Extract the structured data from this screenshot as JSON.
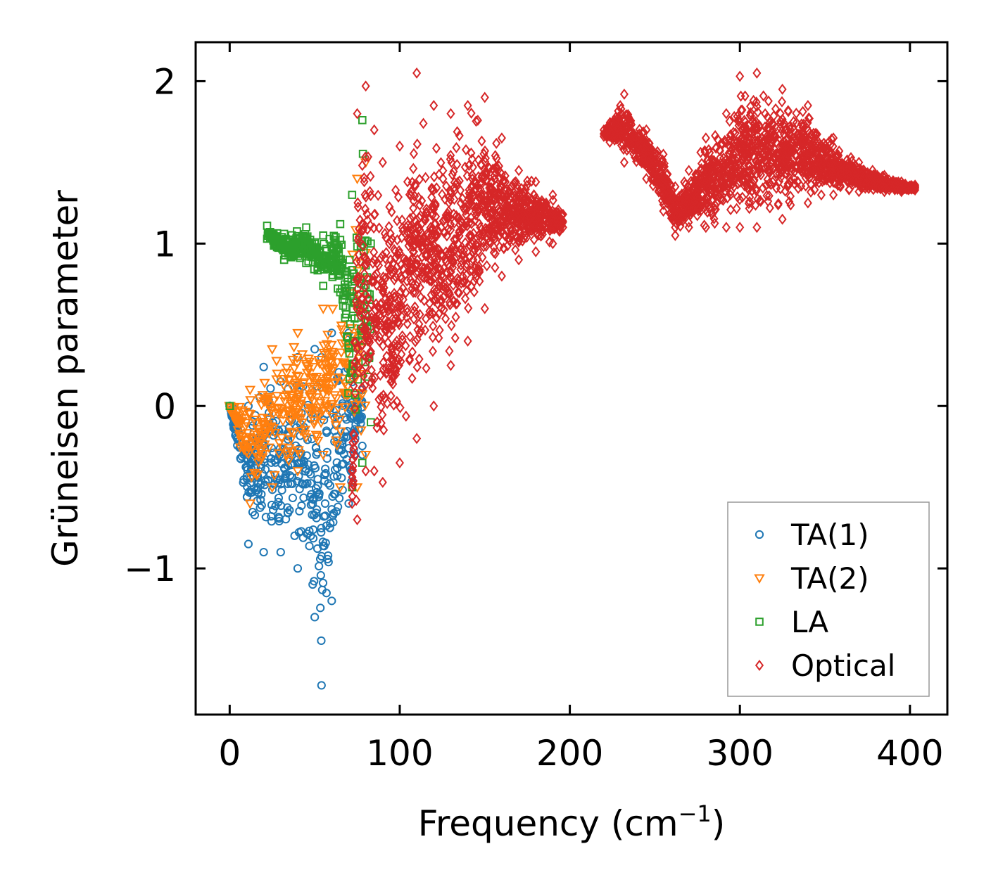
{
  "chart_data": {
    "type": "scatter",
    "title": "",
    "xlabel": "Frequency (cm",
    "xlabel_sup": "−1",
    "xlabel_tail": ")",
    "ylabel": "Grüneisen parameter",
    "xlim": [
      -20,
      422
    ],
    "ylim": [
      -1.9,
      2.24
    ],
    "xticks": [
      0,
      100,
      200,
      300,
      400
    ],
    "xtick_labels": [
      "0",
      "100",
      "200",
      "300",
      "400"
    ],
    "yticks": [
      -1,
      0,
      1,
      2
    ],
    "ytick_labels": [
      "−1",
      "0",
      "1",
      "2"
    ],
    "grid": false,
    "legend_position": "lower-right",
    "series": [
      {
        "name": "TA(1)",
        "marker": "circle",
        "color": "#1f77b4",
        "point_count": 420,
        "envelope": [
          {
            "x": 0,
            "min": 0.0,
            "max": 0.0
          },
          {
            "x": 11,
            "min": -0.85,
            "max": 0.0
          },
          {
            "x": 20,
            "min": -0.9,
            "max": 0.24
          },
          {
            "x": 30,
            "min": -0.9,
            "max": 0.15
          },
          {
            "x": 40,
            "min": -1.0,
            "max": 0.3
          },
          {
            "x": 50,
            "min": -1.3,
            "max": 0.35
          },
          {
            "x": 54,
            "min": -1.72,
            "max": 0.3
          },
          {
            "x": 60,
            "min": -1.2,
            "max": 0.45
          },
          {
            "x": 70,
            "min": -0.6,
            "max": 0.45
          },
          {
            "x": 78,
            "min": -0.3,
            "max": 0.1
          }
        ]
      },
      {
        "name": "TA(2)",
        "marker": "triangle_down",
        "color": "#ff7f0e",
        "point_count": 360,
        "envelope": [
          {
            "x": 0,
            "min": 0.0,
            "max": 0.0
          },
          {
            "x": 12,
            "min": -0.6,
            "max": 0.1
          },
          {
            "x": 25,
            "min": -0.5,
            "max": 0.35
          },
          {
            "x": 40,
            "min": -0.4,
            "max": 0.45
          },
          {
            "x": 55,
            "min": -0.3,
            "max": 0.6
          },
          {
            "x": 65,
            "min": -0.5,
            "max": 0.9
          },
          {
            "x": 75,
            "min": -0.5,
            "max": 1.4
          },
          {
            "x": 80,
            "min": -0.3,
            "max": 1.5
          }
        ]
      },
      {
        "name": "LA",
        "marker": "square",
        "color": "#2ca02c",
        "point_count": 380,
        "envelope": [
          {
            "x": 0,
            "min": 0.0,
            "max": 0.0
          },
          {
            "x": 22,
            "min": 1.03,
            "max": 1.11
          },
          {
            "x": 32,
            "min": 0.9,
            "max": 1.06
          },
          {
            "x": 45,
            "min": 0.88,
            "max": 1.1
          },
          {
            "x": 55,
            "min": 0.74,
            "max": 1.05
          },
          {
            "x": 65,
            "min": 0.7,
            "max": 1.12
          },
          {
            "x": 72,
            "min": -0.5,
            "max": 1.3
          },
          {
            "x": 78,
            "min": -0.35,
            "max": 1.76
          },
          {
            "x": 83,
            "min": -0.1,
            "max": 1.0
          }
        ]
      },
      {
        "name": "Optical",
        "marker": "diamond",
        "color": "#d62728",
        "point_count": 3200,
        "envelope": [
          {
            "x": 72,
            "min": -0.6,
            "max": -0.4
          },
          {
            "x": 75,
            "min": -0.7,
            "max": 1.8
          },
          {
            "x": 80,
            "min": -0.4,
            "max": 1.97
          },
          {
            "x": 85,
            "min": -0.4,
            "max": 1.7
          },
          {
            "x": 90,
            "min": -0.47,
            "max": 1.5
          },
          {
            "x": 100,
            "min": -0.35,
            "max": 1.6
          },
          {
            "x": 110,
            "min": -0.2,
            "max": 2.05
          },
          {
            "x": 120,
            "min": 0.0,
            "max": 1.85
          },
          {
            "x": 130,
            "min": 0.25,
            "max": 1.8
          },
          {
            "x": 140,
            "min": 0.4,
            "max": 1.85
          },
          {
            "x": 150,
            "min": 0.6,
            "max": 1.9
          },
          {
            "x": 160,
            "min": 0.8,
            "max": 1.65
          },
          {
            "x": 170,
            "min": 0.9,
            "max": 1.45
          },
          {
            "x": 180,
            "min": 0.95,
            "max": 1.38
          },
          {
            "x": 190,
            "min": 1.0,
            "max": 1.3
          },
          {
            "x": 196,
            "min": 1.1,
            "max": 1.18
          },
          {
            "x": 220,
            "min": 1.66,
            "max": 1.7
          },
          {
            "x": 232,
            "min": 1.5,
            "max": 1.92
          },
          {
            "x": 245,
            "min": 1.4,
            "max": 1.7
          },
          {
            "x": 255,
            "min": 1.2,
            "max": 1.55
          },
          {
            "x": 262,
            "min": 1.05,
            "max": 1.35
          },
          {
            "x": 270,
            "min": 1.1,
            "max": 1.45
          },
          {
            "x": 280,
            "min": 1.1,
            "max": 1.65
          },
          {
            "x": 292,
            "min": 1.1,
            "max": 1.8
          },
          {
            "x": 300,
            "min": 1.1,
            "max": 2.03
          },
          {
            "x": 310,
            "min": 1.1,
            "max": 2.05
          },
          {
            "x": 325,
            "min": 1.15,
            "max": 1.95
          },
          {
            "x": 340,
            "min": 1.25,
            "max": 1.85
          },
          {
            "x": 355,
            "min": 1.3,
            "max": 1.65
          },
          {
            "x": 370,
            "min": 1.32,
            "max": 1.5
          },
          {
            "x": 385,
            "min": 1.32,
            "max": 1.42
          },
          {
            "x": 395,
            "min": 1.32,
            "max": 1.38
          },
          {
            "x": 403,
            "min": 1.33,
            "max": 1.36
          }
        ]
      }
    ]
  }
}
